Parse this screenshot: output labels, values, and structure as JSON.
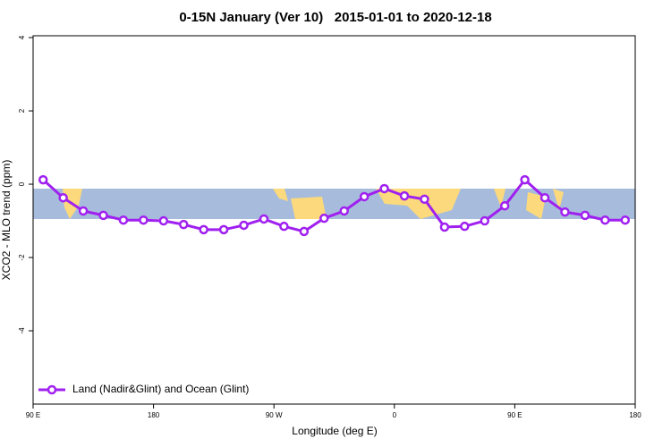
{
  "chart_data": {
    "type": "line",
    "title": "0-15N January (Ver 10)   2015-01-01 to 2020-12-18",
    "x_label": "Longitude (deg E)",
    "y_label": "XCO2 - MLO trend (ppm)",
    "x": [
      97.5,
      112.5,
      127.5,
      142.5,
      157.5,
      172.5,
      187.5,
      202.5,
      217.5,
      232.5,
      247.5,
      262.5,
      277.5,
      292.5,
      307.5,
      322.5,
      337.5,
      352.5,
      367.5,
      382.5,
      397.5,
      412.5,
      427.5,
      442.5,
      457.5,
      472.5,
      487.5,
      502.5,
      517.5,
      532.5
    ],
    "series": [
      {
        "name": "Land (Nadir&Glint) and Ocean (Glint)",
        "color": "#a020f0",
        "values": [
          0.12,
          -0.37,
          -0.73,
          -0.85,
          -0.98,
          -0.98,
          -1.0,
          -1.1,
          -1.24,
          -1.24,
          -1.12,
          -0.95,
          -1.15,
          -1.29,
          -0.93,
          -0.73,
          -0.34,
          -0.12,
          -0.32,
          -0.41,
          -1.17,
          -1.15,
          -1.0,
          -0.59,
          0.12,
          -0.37,
          -0.76,
          -0.85,
          -0.98,
          -0.98
        ]
      }
    ],
    "xlim": [
      90,
      540
    ],
    "xticks": [
      {
        "value": 90,
        "label": "90 E"
      },
      {
        "value": 180,
        "label": "180"
      },
      {
        "value": 270,
        "label": "90 W"
      },
      {
        "value": 360,
        "label": "0"
      },
      {
        "value": 450,
        "label": "90 E"
      },
      {
        "value": 540,
        "label": "180"
      }
    ],
    "ylim": [
      -6,
      4.05
    ],
    "yticks": [
      -4,
      -2,
      0,
      2,
      4
    ],
    "legend": "bottom-left"
  }
}
